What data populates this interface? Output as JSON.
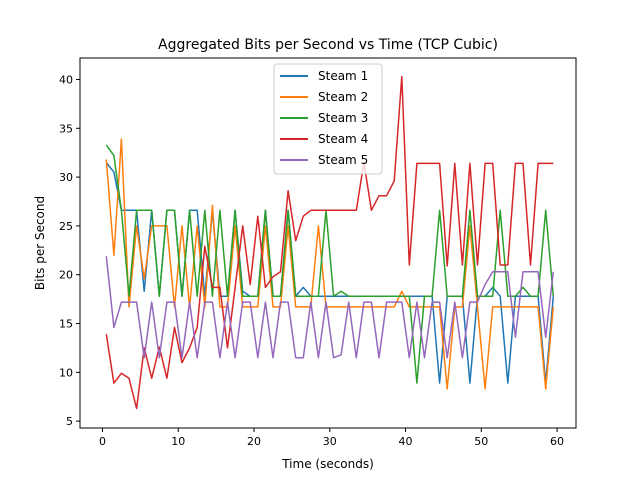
{
  "chart_data": {
    "type": "line",
    "title": "Aggregated Bits per Second vs Time (TCP Cubic)",
    "xlabel": "Time (seconds)",
    "ylabel": "Bits per Second",
    "xlim": [
      -2.97,
      62.5
    ],
    "ylim": [
      4.3,
      42.2
    ],
    "xticks": [
      0,
      10,
      20,
      30,
      40,
      50,
      60
    ],
    "yticks": [
      5,
      10,
      15,
      20,
      25,
      30,
      35,
      40
    ],
    "grid": false,
    "legend_position": "upper center",
    "x": [
      0.5,
      1.5,
      2.5,
      3.5,
      4.5,
      5.5,
      6.5,
      7.5,
      8.5,
      9.5,
      10.5,
      11.5,
      12.5,
      13.5,
      14.5,
      15.5,
      16.5,
      17.5,
      18.5,
      19.5,
      20.5,
      21.5,
      22.5,
      23.5,
      24.5,
      25.5,
      26.5,
      27.5,
      28.5,
      29.5,
      30.5,
      31.5,
      32.5,
      33.5,
      34.5,
      35.5,
      36.5,
      37.5,
      38.5,
      39.5,
      40.5,
      41.5,
      42.5,
      43.5,
      44.5,
      45.5,
      46.5,
      47.5,
      48.5,
      49.5,
      50.5,
      51.5,
      52.5,
      53.5,
      54.5,
      55.5,
      56.5,
      57.5,
      58.5,
      59.5
    ],
    "series": [
      {
        "name": "Steam 1",
        "color": "#1f77b4",
        "values": [
          31.5,
          30.5,
          26.6,
          26.6,
          26.6,
          18.3,
          26.6,
          17.8,
          26.6,
          26.6,
          17.8,
          26.6,
          26.6,
          17.8,
          26.6,
          17.8,
          17.8,
          26.6,
          18.3,
          17.8,
          17.8,
          26.6,
          17.8,
          17.8,
          26.6,
          17.8,
          18.7,
          17.8,
          17.8,
          17.8,
          17.8,
          17.8,
          17.8,
          17.8,
          17.8,
          17.8,
          17.8,
          17.8,
          17.8,
          17.8,
          17.8,
          17.8,
          17.8,
          17.8,
          8.9,
          17.8,
          17.8,
          17.8,
          8.9,
          17.8,
          17.8,
          18.7,
          17.8,
          8.9,
          17.8,
          17.8,
          17.8,
          17.8,
          8.9,
          17.8
        ]
      },
      {
        "name": "Steam 2",
        "color": "#ff7f0e",
        "values": [
          31.8,
          22.0,
          33.9,
          16.7,
          25.0,
          19.6,
          25.0,
          25.0,
          25.0,
          16.7,
          25.0,
          16.7,
          25.0,
          16.7,
          27.1,
          16.7,
          16.7,
          25.0,
          16.7,
          16.7,
          16.7,
          25.0,
          16.7,
          16.7,
          25.0,
          16.7,
          16.7,
          16.7,
          25.0,
          16.7,
          16.7,
          16.7,
          16.7,
          16.7,
          16.7,
          16.7,
          16.7,
          16.7,
          16.7,
          18.3,
          16.7,
          16.7,
          16.7,
          16.7,
          16.7,
          8.3,
          16.7,
          16.7,
          25.0,
          16.7,
          8.3,
          16.7,
          16.7,
          16.7,
          16.7,
          16.7,
          16.7,
          16.7,
          8.3,
          16.7
        ]
      },
      {
        "name": "Steam 3",
        "color": "#2ca02c",
        "values": [
          33.3,
          32.2,
          26.6,
          17.8,
          26.6,
          26.6,
          26.6,
          17.8,
          26.6,
          26.6,
          17.8,
          26.6,
          17.8,
          26.6,
          17.8,
          26.6,
          17.8,
          26.6,
          17.8,
          17.8,
          17.8,
          26.6,
          17.8,
          17.8,
          26.6,
          17.8,
          17.8,
          17.8,
          17.8,
          26.6,
          17.8,
          18.3,
          17.8,
          17.8,
          17.8,
          17.8,
          17.8,
          17.8,
          17.8,
          17.8,
          17.8,
          8.9,
          17.8,
          17.8,
          26.6,
          17.8,
          17.8,
          17.8,
          26.6,
          17.8,
          17.8,
          17.8,
          26.6,
          17.8,
          17.8,
          18.7,
          17.8,
          17.8,
          26.6,
          17.8
        ]
      },
      {
        "name": "Steam 4",
        "color": "#d62728",
        "values": [
          13.9,
          8.9,
          9.9,
          9.4,
          6.3,
          12.5,
          9.4,
          12.6,
          9.4,
          14.6,
          11.0,
          12.5,
          14.6,
          22.9,
          18.7,
          18.7,
          12.5,
          18.7,
          25.0,
          19.0,
          26.0,
          18.7,
          19.8,
          20.3,
          28.6,
          23.5,
          26.0,
          26.6,
          26.6,
          26.6,
          26.6,
          26.6,
          26.6,
          26.6,
          31.5,
          26.6,
          28.1,
          28.1,
          29.6,
          40.3,
          21.0,
          31.4,
          31.4,
          31.4,
          31.4,
          20.9,
          31.4,
          21.0,
          31.4,
          21.0,
          31.4,
          31.4,
          21.0,
          21.0,
          31.4,
          31.4,
          21.0,
          31.4,
          31.4,
          31.4
        ]
      },
      {
        "name": "Steam 5",
        "color": "#9467bd",
        "values": [
          21.9,
          14.6,
          17.2,
          17.2,
          17.2,
          11.5,
          17.2,
          11.5,
          17.2,
          17.2,
          11.5,
          17.2,
          11.5,
          17.2,
          17.2,
          11.5,
          17.2,
          11.5,
          17.2,
          17.2,
          11.5,
          17.2,
          11.5,
          17.2,
          17.2,
          11.5,
          11.5,
          17.2,
          11.5,
          17.2,
          11.5,
          11.8,
          17.2,
          11.5,
          17.2,
          17.2,
          11.5,
          17.2,
          17.2,
          17.2,
          11.5,
          17.2,
          11.5,
          17.2,
          17.2,
          11.5,
          17.2,
          11.5,
          17.2,
          17.2,
          19.0,
          20.3,
          20.3,
          20.3,
          13.6,
          20.3,
          20.3,
          20.3,
          13.6,
          20.3
        ]
      }
    ]
  }
}
